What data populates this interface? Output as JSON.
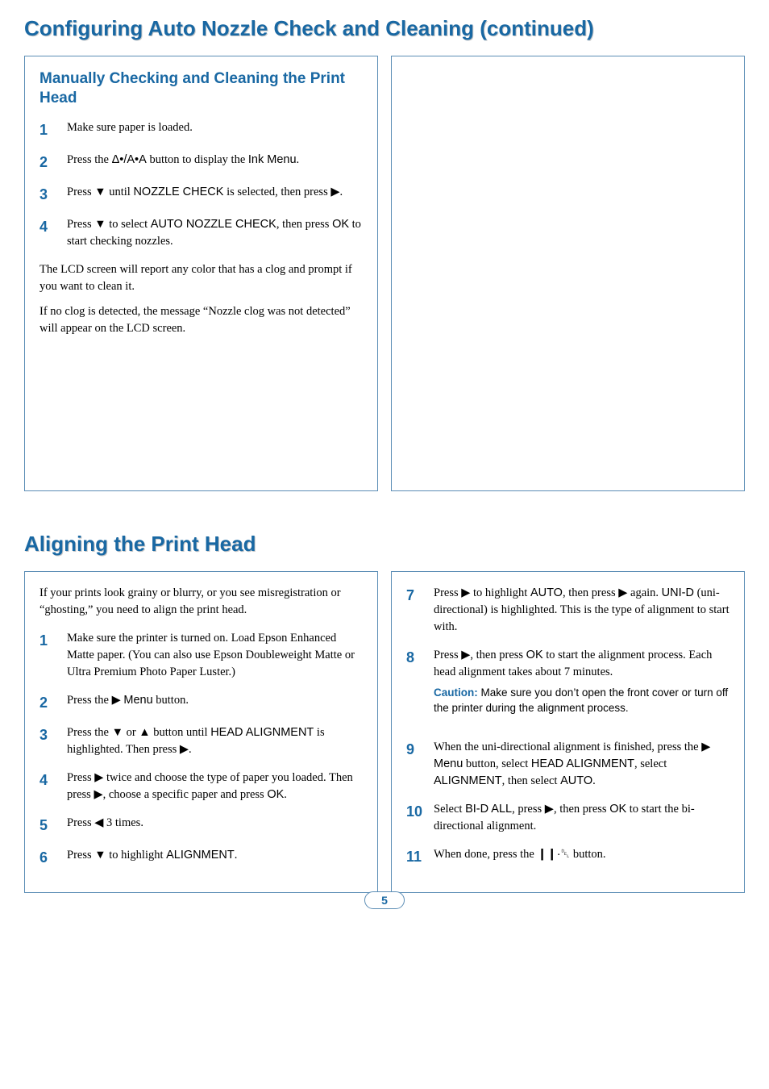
{
  "colors": {
    "heading_blue": "#1968a3",
    "border_blue": "#5b8db5",
    "shadow_gray": "#c8c8c8",
    "text": "#000000",
    "background": "#ffffff"
  },
  "typography": {
    "heading_size_pt": 26,
    "subheading_size_pt": 19,
    "body_size_pt": 14.5,
    "step_num_size_pt": 18,
    "heading_family": "Arial",
    "body_family": "Georgia"
  },
  "heading1": "Configuring Auto Nozzle Check and Cleaning (continued)",
  "section1": {
    "subheading": "Manually Checking and Cleaning the Print Head",
    "steps": [
      {
        "n": "1",
        "text": "Make sure paper is loaded."
      },
      {
        "n": "2",
        "prefix": "Press the ",
        "icon": "ink-drop-aa",
        "mid": " button to display the ",
        "sans1": "Ink Menu",
        "suffix": "."
      },
      {
        "n": "3",
        "prefix": "Press ",
        "icon": "down",
        "mid": " until ",
        "sans1": "NOZZLE CHECK",
        "mid2": " is selected, then press ",
        "icon2": "right",
        "suffix": "."
      },
      {
        "n": "4",
        "prefix": "Press ",
        "icon": "down",
        "mid": " to select ",
        "sans1": "AUTO NOZZLE CHECK",
        "mid2": ", then press ",
        "sans2": "OK",
        "suffix": " to start checking nozzles."
      }
    ],
    "para1": "The LCD screen will report any color that has a clog and prompt if you want to clean it.",
    "para2": "If no clog is detected, the message “Nozzle clog was not detected” will appear on the LCD screen."
  },
  "heading2": "Aligning the Print Head",
  "section2_left": {
    "intro": "If your prints look grainy or blurry, or you see misregistration or “ghosting,” you need to align the print head.",
    "steps": [
      {
        "n": "1",
        "text": "Make sure the printer is turned on. Load Epson Enhanced Matte paper. (You can also use Epson Doubleweight Matte or Ultra Premium Photo Paper Luster.)"
      },
      {
        "n": "2",
        "prefix": "Press the ",
        "icon": "right",
        "mid": " ",
        "sans1": "Menu",
        "suffix": " button."
      },
      {
        "n": "3",
        "prefix": "Press the ",
        "icon": "down",
        "mid": " or ",
        "icon2": "up",
        "mid2": " button until ",
        "sans1": "HEAD ALIGNMENT",
        "mid3": " is highlighted. Then press ",
        "icon3": "right",
        "suffix": "."
      },
      {
        "n": "4",
        "prefix": "Press ",
        "icon": "right",
        "mid": " twice and choose the type of paper you loaded. Then press ",
        "icon2": "right",
        "mid2": ", choose a specific paper and press ",
        "sans1": "OK",
        "suffix": "."
      },
      {
        "n": "5",
        "prefix": "Press ",
        "icon": "left",
        "suffix": " 3 times."
      },
      {
        "n": "6",
        "prefix": "Press ",
        "icon": "down",
        "mid": " to highlight ",
        "sans1": "ALIGNMENT",
        "suffix": "."
      }
    ]
  },
  "section2_right": {
    "steps": [
      {
        "n": "7",
        "prefix": "Press ",
        "icon": "right",
        "mid": " to highlight ",
        "sans1": "AUTO",
        "mid2": ", then press ",
        "icon2": "right",
        "mid3": " again. ",
        "sans2": "UNI-D",
        "suffix": " (uni-directional) is highlighted. This is the type of alignment to start with."
      },
      {
        "n": "8",
        "prefix": "Press ",
        "icon": "right",
        "mid": ", then press ",
        "sans1": "OK",
        "suffix": " to start the alignment process. Each head alignment takes about 7 minutes."
      }
    ],
    "caution_label": "Caution:",
    "caution_text": " Make sure you don’t open the front cover or turn off the printer during the alignment process.",
    "steps2": [
      {
        "n": "9",
        "prefix": "When the uni-directional alignment is finished, press the ",
        "icon": "right",
        "mid": " ",
        "sans1": "Menu",
        "mid2": " button, select ",
        "sans2": "HEAD ALIGNMENT",
        "mid3": ", select ",
        "sans3": "ALIGNMENT",
        "mid4": ", then select ",
        "sans4": "AUTO",
        "suffix": "."
      },
      {
        "n": "10",
        "prefix": "Select ",
        "sans1": "BI-D ALL",
        "mid": ", press ",
        "icon": "right",
        "mid2": ", then press ",
        "sans2": "OK",
        "suffix": " to start the bi-directional alignment."
      },
      {
        "n": "11",
        "prefix": "When done, press the ",
        "icon": "pause-trash",
        "suffix": " button."
      }
    ]
  },
  "page_number": "5",
  "icons": {
    "down": "▼",
    "up": "▲",
    "right": "▶",
    "left": "◀",
    "ink-drop-aa": "Δ•/A•A",
    "pause-trash": "❙❙·␡"
  }
}
